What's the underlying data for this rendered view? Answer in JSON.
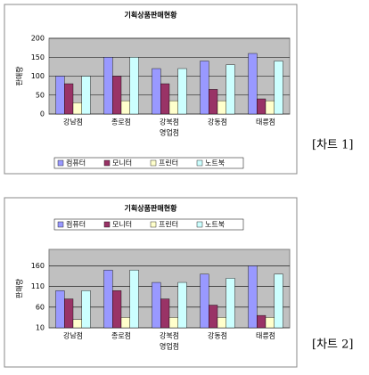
{
  "chart_data": [
    {
      "type": "bar",
      "title": "기획상품판매현황",
      "x_label": "영업점",
      "y_label": "판매량",
      "caption": "[차트 1]",
      "legend": "bottom",
      "grid": true,
      "categories": [
        "강남점",
        "종로점",
        "강북점",
        "강동점",
        "태릉점"
      ],
      "series": [
        {
          "name": "컴퓨터",
          "color": "#9999ff",
          "values": [
            100,
            150,
            120,
            140,
            160
          ]
        },
        {
          "name": "모니터",
          "color": "#993366",
          "values": [
            80,
            100,
            80,
            65,
            40
          ]
        },
        {
          "name": "프린터",
          "color": "#ffffcc",
          "values": [
            30,
            35,
            35,
            35,
            35
          ]
        },
        {
          "name": "노트북",
          "color": "#ccffff",
          "values": [
            100,
            150,
            120,
            130,
            140
          ]
        }
      ],
      "ylim": [
        0,
        200
      ],
      "yticks": [
        0,
        50,
        100,
        150,
        200
      ]
    },
    {
      "type": "bar",
      "title": "기획상품판매현황",
      "x_label": "영업점",
      "y_label": "판매량",
      "caption": "[차트 2]",
      "legend": "top",
      "grid": true,
      "categories": [
        "강남점",
        "종로점",
        "강북점",
        "강동점",
        "태릉점"
      ],
      "series": [
        {
          "name": "컴퓨터",
          "color": "#9999ff",
          "values": [
            100,
            150,
            120,
            140,
            160
          ]
        },
        {
          "name": "모니터",
          "color": "#993366",
          "values": [
            80,
            100,
            80,
            65,
            40
          ]
        },
        {
          "name": "프린터",
          "color": "#ffffcc",
          "values": [
            30,
            35,
            35,
            35,
            35
          ]
        },
        {
          "name": "노트북",
          "color": "#ccffff",
          "values": [
            100,
            150,
            120,
            130,
            140
          ]
        }
      ],
      "ylim": [
        10,
        200
      ],
      "yticks": [
        10,
        60,
        110,
        160
      ]
    }
  ]
}
